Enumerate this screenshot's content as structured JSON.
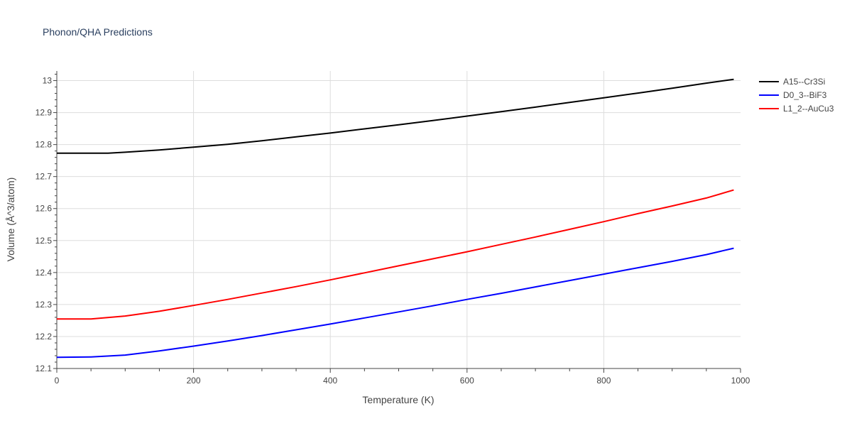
{
  "chart_data": {
    "type": "line",
    "title": "Phonon/QHA Predictions",
    "xlabel": "Temperature (K)",
    "ylabel": "Volume (Å^3/atom)",
    "xlim": [
      0,
      1000
    ],
    "ylim": [
      12.1,
      13.03
    ],
    "x_ticks": [
      0,
      200,
      400,
      600,
      800,
      1000
    ],
    "y_ticks": [
      12.1,
      12.2,
      12.3,
      12.4,
      12.5,
      12.6,
      12.7,
      12.8,
      12.9,
      13
    ],
    "grid": true,
    "legend_position": "top-right",
    "series": [
      {
        "name": "A15--Cr3Si",
        "color": "#000000",
        "x": [
          0,
          50,
          75,
          100,
          150,
          200,
          250,
          300,
          350,
          400,
          450,
          500,
          550,
          600,
          650,
          700,
          750,
          800,
          850,
          900,
          950,
          990
        ],
        "y": [
          12.773,
          12.773,
          12.773,
          12.776,
          12.783,
          12.792,
          12.801,
          12.812,
          12.824,
          12.836,
          12.849,
          12.862,
          12.875,
          12.889,
          12.903,
          12.917,
          12.932,
          12.946,
          12.961,
          12.976,
          12.992,
          13.004
        ]
      },
      {
        "name": "D0_3--BiF3",
        "color": "#0000ff",
        "x": [
          0,
          50,
          100,
          150,
          200,
          250,
          300,
          350,
          400,
          450,
          500,
          550,
          600,
          650,
          700,
          750,
          800,
          850,
          900,
          950,
          990
        ],
        "y": [
          12.135,
          12.136,
          12.142,
          12.155,
          12.17,
          12.186,
          12.203,
          12.221,
          12.239,
          12.258,
          12.277,
          12.296,
          12.316,
          12.335,
          12.355,
          12.375,
          12.395,
          12.415,
          12.435,
          12.456,
          12.476
        ]
      },
      {
        "name": "L1_2--AuCu3",
        "color": "#ff0000",
        "x": [
          0,
          50,
          100,
          150,
          200,
          250,
          300,
          350,
          400,
          450,
          500,
          550,
          600,
          650,
          700,
          750,
          800,
          850,
          900,
          950,
          990
        ],
        "y": [
          12.255,
          12.255,
          12.264,
          12.279,
          12.297,
          12.316,
          12.336,
          12.356,
          12.377,
          12.399,
          12.421,
          12.443,
          12.465,
          12.488,
          12.511,
          12.535,
          12.559,
          12.584,
          12.608,
          12.633,
          12.658
        ]
      }
    ]
  }
}
